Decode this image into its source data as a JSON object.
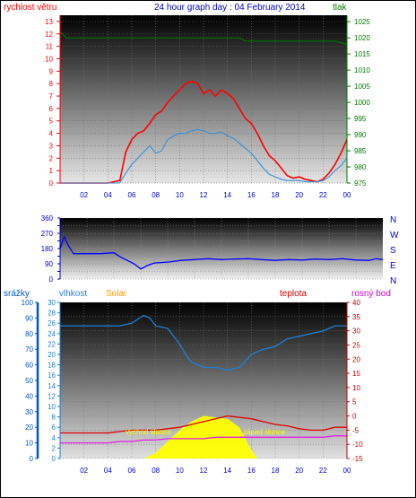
{
  "header": {
    "title": "24 hour graph day : 04 February 2014",
    "left_label": "rychlost větru",
    "right_label": "tlak"
  },
  "bottom_header": {
    "srazky": "srážky",
    "vlhkost": "vlhkost",
    "solar": "Solar",
    "teplota": "teplota",
    "rosny_bod": "rosný bod"
  },
  "annotations": {
    "sunrise": "východ slunce",
    "sunset": "západ slunce"
  },
  "colors": {
    "wind": "#ff0000",
    "wind_avg": "#3a8fd8",
    "pressure": "#007a00",
    "direction": "#0000ff",
    "humidity": "#1e7fd8",
    "temperature": "#e00000",
    "dewpoint": "#e020e0",
    "solar": "#ffff00",
    "rain_axis": "#0055cc",
    "temp_axis": "#cc0000"
  },
  "chart_data": [
    {
      "type": "line",
      "name": "wind_pressure",
      "x_ticks": [
        "02",
        "04",
        "06",
        "08",
        "10",
        "12",
        "14",
        "16",
        "18",
        "20",
        "22",
        "00"
      ],
      "y_left_ticks": [
        0,
        1,
        2,
        3,
        4,
        5,
        6,
        7,
        8,
        9,
        10,
        11,
        12,
        13
      ],
      "y_right_ticks": [
        975,
        980,
        985,
        990,
        995,
        1000,
        1005,
        1010,
        1015,
        1020,
        1025
      ],
      "ylim_left": [
        0,
        13.5
      ],
      "ylim_right": [
        975,
        1027
      ],
      "series": [
        {
          "name": "wind_gust",
          "x": [
            0,
            1,
            2,
            3,
            4,
            5,
            5.5,
            6,
            6.5,
            7,
            7.5,
            8,
            8.5,
            9,
            9.5,
            10,
            10.5,
            11,
            11.5,
            12,
            12.5,
            13,
            13.5,
            14,
            14.5,
            15,
            15.5,
            16,
            16.5,
            17,
            17.5,
            18,
            18.5,
            19,
            19.5,
            20,
            20.5,
            21,
            21.5,
            22,
            22.5,
            23,
            23.5,
            24
          ],
          "values": [
            0,
            0,
            0,
            0,
            0,
            0.2,
            2.5,
            3.5,
            4,
            4.2,
            4.8,
            5.5,
            5.8,
            6.5,
            7,
            7.5,
            8,
            8.2,
            8,
            7.2,
            7.5,
            7,
            7.5,
            7.2,
            6.8,
            6,
            5.2,
            4.8,
            4,
            3,
            2.2,
            1.8,
            1.2,
            0.6,
            0.4,
            0.5,
            0.3,
            0.2,
            0.1,
            0.3,
            0.8,
            1.5,
            2.4,
            3.5
          ]
        },
        {
          "name": "wind_avg",
          "x": [
            0,
            1,
            2,
            3,
            4,
            5,
            5.5,
            6,
            6.5,
            7,
            7.5,
            8,
            8.5,
            9,
            9.5,
            10,
            10.5,
            11,
            11.5,
            12,
            12.5,
            13,
            13.5,
            14,
            14.5,
            15,
            15.5,
            16,
            16.5,
            17,
            17.5,
            18,
            18.5,
            19,
            19.5,
            20,
            20.5,
            21,
            21.5,
            22,
            22.5,
            23,
            23.5,
            24
          ],
          "values": [
            0,
            0,
            0,
            0,
            0,
            0,
            0.8,
            1.5,
            2,
            2.5,
            3,
            2.4,
            2.6,
            3.5,
            3.8,
            4,
            4,
            4.2,
            4.3,
            4.2,
            4,
            4,
            4.1,
            3.8,
            3.6,
            3.2,
            2.8,
            2.4,
            1.8,
            1.2,
            0.7,
            0.5,
            0.3,
            0.2,
            0.2,
            0.2,
            0.1,
            0.1,
            0.1,
            0.2,
            0.5,
            1,
            1.4,
            2
          ]
        },
        {
          "name": "pressure",
          "axis": "right",
          "x": [
            0,
            0.5,
            1,
            4,
            7,
            10,
            13,
            15,
            15.5,
            18,
            21,
            23,
            24
          ],
          "values": [
            1022,
            1020,
            1020,
            1020,
            1020,
            1020,
            1020,
            1020,
            1019,
            1019,
            1019,
            1019,
            1018
          ]
        }
      ]
    },
    {
      "type": "line",
      "name": "wind_direction",
      "x_ticks": [],
      "y_left_ticks": [
        0,
        45,
        90,
        135,
        180,
        225,
        270,
        315,
        360
      ],
      "y_left_labels": [
        "0",
        "",
        "90",
        "",
        "180",
        "",
        "270",
        "",
        "360"
      ],
      "y_right_labels": [
        "N",
        "W",
        "S",
        "E",
        "N"
      ],
      "ylim": [
        0,
        360
      ],
      "series": [
        {
          "name": "direction",
          "x": [
            0,
            0.3,
            0.6,
            1,
            2,
            3,
            4,
            4.5,
            5,
            5.5,
            6,
            6.5,
            7,
            8,
            9,
            10,
            11,
            12,
            13,
            14,
            15,
            16,
            17,
            18,
            19,
            20,
            21,
            22,
            23,
            23.5,
            24
          ],
          "values": [
            180,
            250,
            200,
            150,
            150,
            150,
            155,
            130,
            110,
            90,
            60,
            80,
            95,
            100,
            110,
            115,
            120,
            115,
            118,
            120,
            115,
            110,
            115,
            112,
            118,
            115,
            120,
            112,
            110,
            120,
            115
          ]
        }
      ]
    },
    {
      "type": "line",
      "name": "rain_humidity_temperature",
      "x_ticks": [
        "02",
        "04",
        "06",
        "08",
        "10",
        "12",
        "14",
        "16",
        "18",
        "20",
        "22",
        "00"
      ],
      "y_rain_ticks": [
        0,
        10,
        20,
        30,
        40,
        50,
        60,
        70,
        80,
        90,
        100
      ],
      "y_humidity_ticks": [
        0,
        2,
        4,
        6,
        8,
        10,
        12,
        14,
        16,
        18,
        20,
        22,
        24,
        26,
        28,
        30
      ],
      "y_temp_ticks": [
        -15,
        -10,
        -5,
        0,
        5,
        10,
        15,
        20,
        25,
        30,
        35,
        40
      ],
      "ylim_humidity": [
        0,
        30
      ],
      "ylim_temp": [
        -15,
        40
      ],
      "series": [
        {
          "name": "humidity",
          "axis": "humidity",
          "x": [
            0,
            2,
            4,
            5,
            6,
            7,
            7.5,
            8,
            9,
            10,
            10.5,
            11,
            12,
            13,
            14,
            15,
            16,
            17,
            18,
            19,
            20,
            21,
            22,
            23,
            24
          ],
          "values": [
            25.5,
            25.5,
            25.5,
            25.5,
            26,
            27.5,
            27,
            25.5,
            25,
            22,
            20,
            18.5,
            17.5,
            17.5,
            17,
            17.5,
            20,
            21,
            21.5,
            23,
            23.5,
            24,
            24.5,
            25.5,
            25.5
          ]
        },
        {
          "name": "temperature",
          "axis": "temp",
          "x": [
            0,
            2,
            4,
            5,
            6,
            7,
            8,
            9,
            10,
            11,
            12,
            13,
            14,
            15,
            16,
            17,
            18,
            19,
            20,
            21,
            22,
            23,
            24
          ],
          "values": [
            -6,
            -6,
            -6,
            -5.5,
            -5,
            -5,
            -5,
            -4.5,
            -4,
            -3,
            -2,
            -1,
            0,
            -0.5,
            -1,
            -2,
            -3,
            -3.5,
            -4.5,
            -5,
            -5,
            -4,
            -4
          ]
        },
        {
          "name": "dewpoint",
          "axis": "temp",
          "x": [
            0,
            2,
            4,
            5,
            6,
            7,
            8,
            9,
            10,
            11,
            12,
            13,
            14,
            15,
            16,
            17,
            18,
            19,
            20,
            21,
            22,
            23,
            24
          ],
          "values": [
            -9.5,
            -9.5,
            -9.5,
            -9,
            -9,
            -8.5,
            -8.5,
            -8,
            -8,
            -8,
            -8,
            -7.5,
            -7.5,
            -7.5,
            -7.5,
            -7.5,
            -7.5,
            -7.5,
            -7.5,
            -7.5,
            -7.5,
            -7,
            -7
          ]
        },
        {
          "name": "solar",
          "axis": "temp",
          "x": [
            7,
            8,
            9,
            10,
            11,
            12,
            13,
            14,
            15,
            16,
            16.5
          ],
          "values": [
            -15,
            -13,
            -9,
            -5,
            -2,
            0,
            -0.5,
            -1,
            -4,
            -12,
            -15
          ]
        }
      ]
    }
  ]
}
